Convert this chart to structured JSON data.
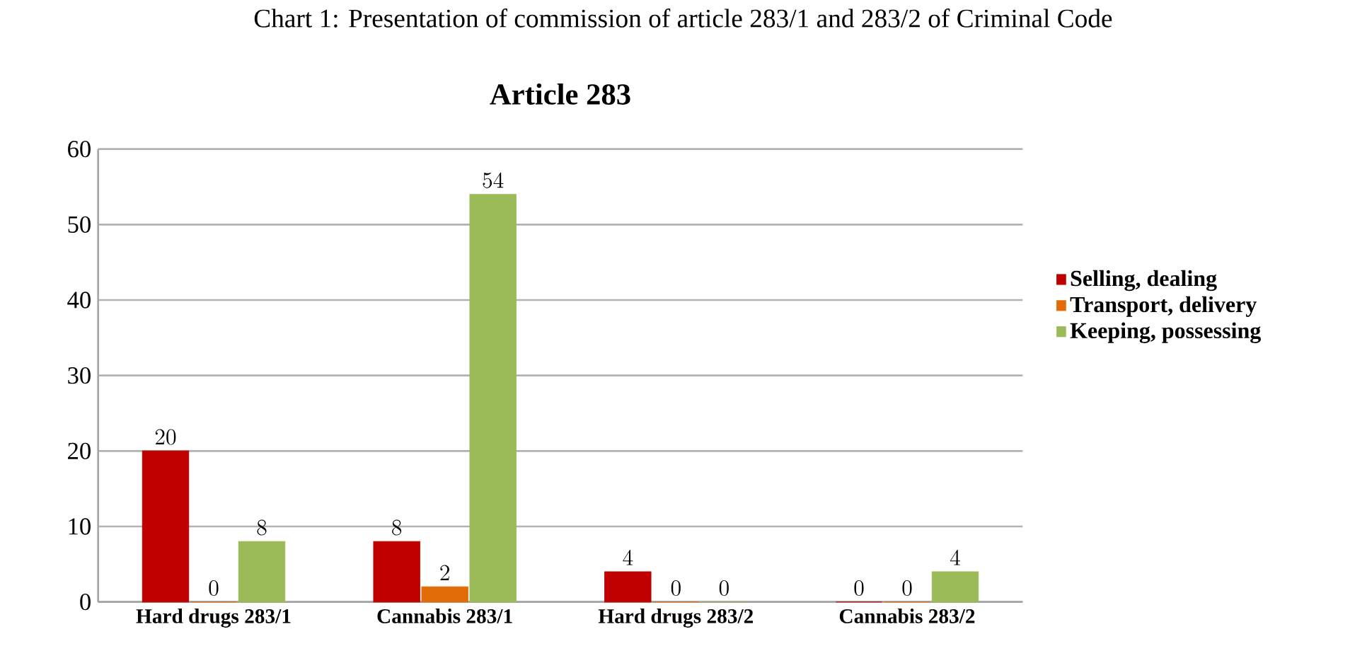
{
  "chart_data": {
    "type": "bar",
    "title": "Chart 1: Presentation of commission of article 283/1 and 283/2 of Criminal Code",
    "subtitle": "Article 283",
    "categories": [
      "Hard drugs 283/1",
      "Cannabis 283/1",
      "Hard drugs 283/2",
      "Cannabis  283/2"
    ],
    "series": [
      {
        "name": "Selling, dealing",
        "color": "#c00000",
        "values": [
          20,
          8,
          4,
          0
        ]
      },
      {
        "name": "Transport, delivery",
        "color": "#e36c09",
        "values": [
          0,
          2,
          0,
          0
        ]
      },
      {
        "name": "Keeping, possessing",
        "color": "#9bbb59",
        "values": [
          8,
          54,
          0,
          4
        ]
      }
    ],
    "ylim": [
      0,
      60
    ],
    "yticks": [
      0,
      10,
      20,
      30,
      40,
      50,
      60
    ],
    "grid": "y",
    "legend": "right",
    "data_labels": true
  }
}
